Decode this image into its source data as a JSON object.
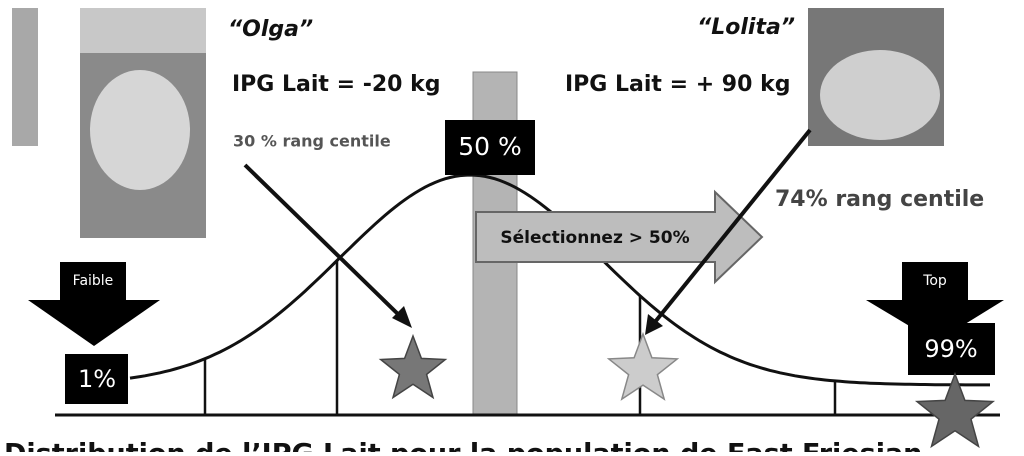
{
  "olga": {
    "name": "“Olga”",
    "ipg": "IPG Lait = -20 kg",
    "rank": "30 % rang centile"
  },
  "lolita": {
    "name": "“Lolita”",
    "ipg": "IPG Lait = + 90 kg",
    "rank": "74% rang centile"
  },
  "median": "50 %",
  "select": "Sélectionnez > 50%",
  "low": {
    "label": "Faible",
    "percent": "1%"
  },
  "top": {
    "label": "Top",
    "percent": "99%"
  },
  "caption": "Distribution de l’IPG Lait pour la population de East Friesian"
}
